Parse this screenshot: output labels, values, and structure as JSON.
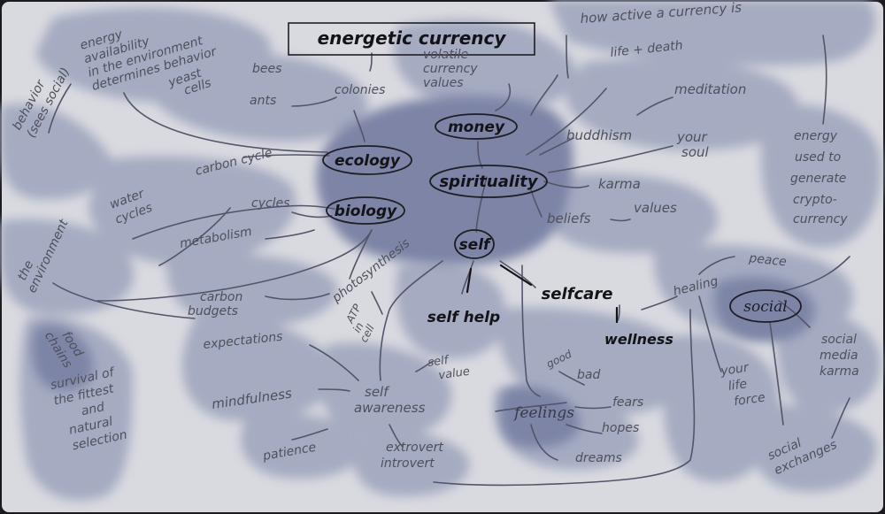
{
  "title": "energetic currency",
  "hubs": {
    "money": "money",
    "ecology": "ecology",
    "spirituality": "spirituality",
    "biology": "biology",
    "self": "self",
    "social": "social"
  },
  "subtopics": {
    "selfcare": "selfcare",
    "selfhelp": "self help",
    "wellness": "wellness",
    "feelings": "feelings"
  },
  "labels": {
    "energy_availability": [
      "energy",
      "availability",
      "in the environment",
      "determines behavior"
    ],
    "behavior_sees_social": [
      "behavior",
      "(sees social)"
    ],
    "bees": "bees",
    "yeast_cells": [
      "yeast",
      "cells"
    ],
    "ants": "ants",
    "colonies": "colonies",
    "volatile_currency": [
      "volatile",
      "currency",
      "values"
    ],
    "how_active": "how active a currency is",
    "life_death": "life + death",
    "meditation": "meditation",
    "buddhism": "buddhism",
    "your_soul": [
      "your",
      "soul"
    ],
    "karma": "karma",
    "beliefs": "beliefs",
    "values": "values",
    "energy_crypto": [
      "energy",
      "used to",
      "generate",
      "crypto-",
      "currency"
    ],
    "carbon_cycle": "carbon cycle",
    "water_cycles": [
      "water",
      "cycles"
    ],
    "cycles": "cycles",
    "metabolism": "metabolism",
    "the_environment": [
      "the",
      "environment"
    ],
    "photosynthesis": "photosynthesis",
    "carbon_budgets": [
      "carbon",
      "budgets"
    ],
    "atp_in_cell": [
      "ATP",
      "in",
      "cell"
    ],
    "healing": "healing",
    "peace": "peace",
    "expectations": "expectations",
    "food_chains": [
      "food",
      "chains"
    ],
    "survival": [
      "survival of",
      "the fittest",
      "and",
      "natural",
      "selection"
    ],
    "mindfulness": "mindfulness",
    "self_awareness": [
      "self",
      "awareness"
    ],
    "self_value": [
      "self",
      "value"
    ],
    "good": "good",
    "bad": "bad",
    "fears": "fears",
    "hopes": "hopes",
    "dreams": "dreams",
    "your_life_force": [
      "your",
      "life",
      "force"
    ],
    "social_media_karma": [
      "social",
      "media",
      "karma"
    ],
    "social_exchanges": [
      "social",
      "exchanges"
    ],
    "patience": "patience",
    "extrovert_introvert": [
      "extrovert",
      "introvert"
    ]
  },
  "colors": {
    "paper": "#d9dae0",
    "blob": "#a5abc1",
    "blob_dark": "#7d84a6",
    "ink": "#50505c",
    "ink_bold": "#141418"
  }
}
